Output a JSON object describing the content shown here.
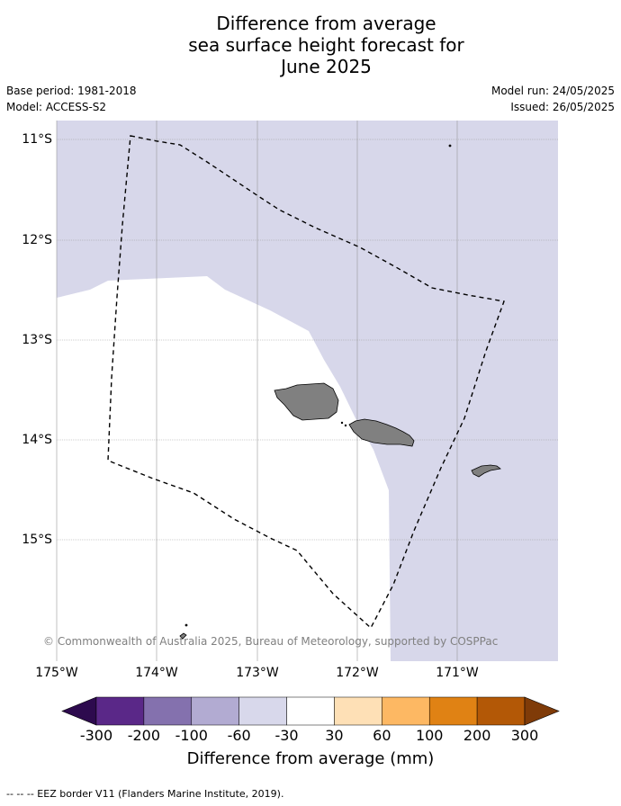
{
  "title_lines": [
    "Difference from average",
    "sea surface height forecast for",
    "June 2025"
  ],
  "meta": {
    "base_period": "Base period: 1981-2018",
    "model": "Model: ACCESS-S2",
    "model_run": "Model run: 24/05/2025",
    "issued": "Issued: 26/05/2025"
  },
  "map": {
    "lon_range": [
      -175,
      -170
    ],
    "lat_range": [
      -16.2,
      -10.8
    ],
    "lat_ticks": [
      {
        "value": -11,
        "label": "11°S"
      },
      {
        "value": -12,
        "label": "12°S"
      },
      {
        "value": -13,
        "label": "13°S"
      },
      {
        "value": -14,
        "label": "14°S"
      },
      {
        "value": -15,
        "label": "15°S"
      }
    ],
    "lon_ticks": [
      {
        "value": -175,
        "label": "175°W"
      },
      {
        "value": -174,
        "label": "174°W"
      },
      {
        "value": -173,
        "label": "173°W"
      },
      {
        "value": -172,
        "label": "172°W"
      },
      {
        "value": -171,
        "label": "171°W"
      }
    ],
    "background_color": "#d7d7ea",
    "neutral_color": "#ffffff",
    "land_color": "#808080",
    "copyright": "© Commonwealth of Australia 2025, Bureau of Meteorology, supported by COSPPac"
  },
  "colorbar": {
    "colors": [
      "#2d0a4e",
      "#5a2888",
      "#8471ae",
      "#b2abd2",
      "#d8d8eb",
      "#ffffff",
      "#fee0b6",
      "#fdb863",
      "#e08214",
      "#b35806",
      "#7f3b08"
    ],
    "labels": [
      "-300",
      "-200",
      "-100",
      "-60",
      "-30",
      "30",
      "60",
      "100",
      "200",
      "300"
    ],
    "title": "Difference from average (mm)"
  },
  "footer": "--  --  -- EEZ border V11 (Flanders Marine Institute, 2019)."
}
